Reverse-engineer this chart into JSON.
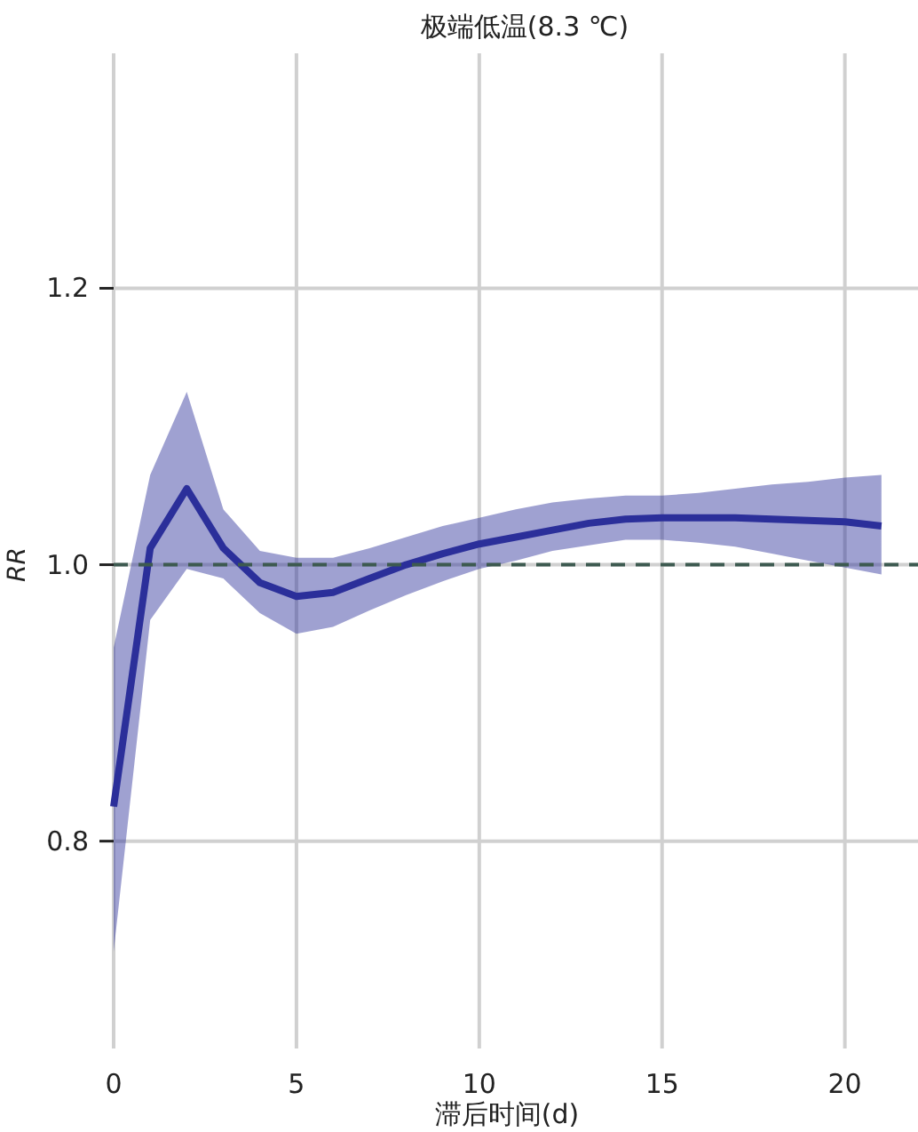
{
  "chart_data": {
    "type": "line",
    "title": "极端低温(8.3 ℃)",
    "xlabel": "滞后时间(d)",
    "ylabel": "RR",
    "x": [
      0,
      1,
      2,
      3,
      4,
      5,
      6,
      7,
      8,
      9,
      10,
      11,
      12,
      13,
      14,
      15,
      16,
      17,
      18,
      19,
      20,
      21
    ],
    "series": [
      {
        "color": "#2b2f9a",
        "values": [
          0.825,
          1.012,
          1.055,
          1.012,
          0.987,
          0.977,
          0.98,
          0.99,
          1.0,
          1.008,
          1.015,
          1.02,
          1.025,
          1.03,
          1.033,
          1.034,
          1.034,
          1.034,
          1.033,
          1.032,
          1.031,
          1.028
        ],
        "lower": [
          0.72,
          0.96,
          0.997,
          0.99,
          0.965,
          0.95,
          0.955,
          0.967,
          0.978,
          0.988,
          0.997,
          1.003,
          1.01,
          1.014,
          1.018,
          1.018,
          1.016,
          1.013,
          1.008,
          1.003,
          0.998,
          0.993
        ],
        "upper": [
          0.94,
          1.065,
          1.125,
          1.04,
          1.01,
          1.005,
          1.005,
          1.012,
          1.02,
          1.028,
          1.034,
          1.04,
          1.045,
          1.048,
          1.05,
          1.05,
          1.052,
          1.055,
          1.058,
          1.06,
          1.063,
          1.065
        ]
      }
    ],
    "xlim": [
      0,
      22
    ],
    "ylim": [
      0.65,
      1.37
    ],
    "xticks": [
      0,
      5,
      10,
      15,
      20
    ],
    "yticks": [
      0.8,
      {
        "value": 1.0,
        "label": "1.0"
      },
      1.2
    ],
    "ref_lines": [
      {
        "axis": "y",
        "value": 1.0,
        "color": "#3d5a50",
        "line_style": "dashed"
      }
    ],
    "grid": true,
    "marker": "none",
    "line_style": "solid"
  }
}
